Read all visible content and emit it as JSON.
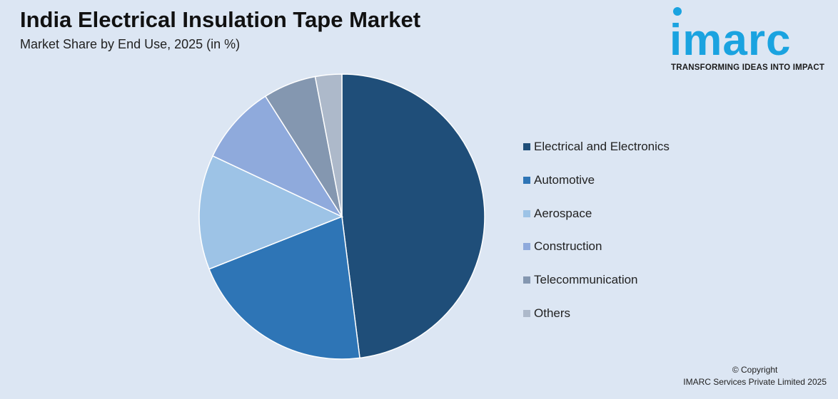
{
  "header": {
    "title": "India Electrical Insulation Tape Market",
    "subtitle": "Market Share by End Use, 2025 (in %)"
  },
  "logo": {
    "wordmark": "imarc",
    "tagline": "TRANSFORMING IDEAS INTO IMPACT",
    "color": "#1aa3e0"
  },
  "chart_data": {
    "type": "pie",
    "title": "India Electrical Insulation Tape Market",
    "subtitle": "Market Share by End Use, 2025 (in %)",
    "legend_position": "right",
    "start_angle": "12 o'clock, clockwise",
    "slices": [
      {
        "label": "Electrical and Electronics",
        "value": 48,
        "color": "#1f4e79"
      },
      {
        "label": "Automotive",
        "value": 21,
        "color": "#2e75b6"
      },
      {
        "label": "Aerospace",
        "value": 13,
        "color": "#9dc3e6"
      },
      {
        "label": "Construction",
        "value": 9,
        "color": "#8faadc"
      },
      {
        "label": "Telecommunication",
        "value": 6,
        "color": "#8497b0"
      },
      {
        "label": "Others",
        "value": 3,
        "color": "#adb9ca"
      }
    ]
  },
  "footer": {
    "copyright_line1": "© Copyright",
    "copyright_line2": "IMARC Services Private Limited 2025"
  }
}
